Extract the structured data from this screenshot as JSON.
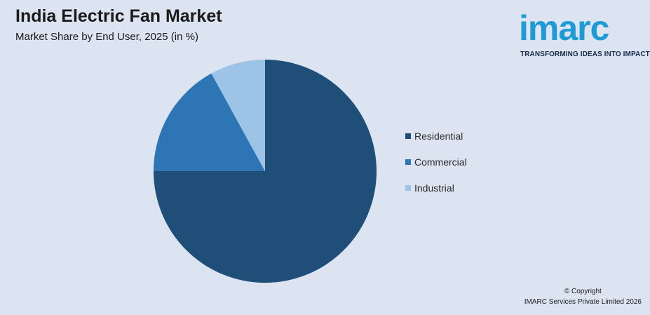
{
  "header": {
    "title": "India Electric Fan Market",
    "subtitle": "Market Share by End User, 2025 (in %)"
  },
  "logo": {
    "word": "imarc",
    "tagline": "TRANSFORMING IDEAS INTO IMPACT"
  },
  "chart_data": {
    "type": "pie",
    "categories": [
      "Residential",
      "Commercial",
      "Industrial"
    ],
    "values": [
      75,
      17,
      8
    ],
    "colors": [
      "#1f4e79",
      "#2e75b6",
      "#9dc3e6"
    ],
    "legend": "right",
    "start": "12 o'clock, clockwise"
  },
  "footer": {
    "line1": "© Copyright",
    "line2": "IMARC Services Private Limited 2026"
  }
}
